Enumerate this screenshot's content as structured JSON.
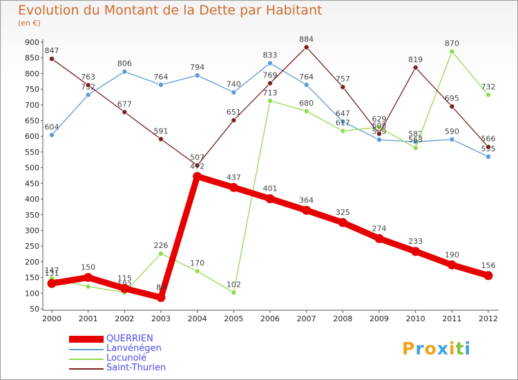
{
  "title": "Evolution du Montant de la Dette par Habitant",
  "subtitle": "(en €)",
  "logo": {
    "letters": [
      "P",
      "r",
      "o",
      "x",
      "i",
      "t",
      "i"
    ],
    "colors": [
      "#f0a21b",
      "#3aa3dc",
      "#f0a21b",
      "#3aa3dc",
      "#f0a21b",
      "#7fbf3a",
      "#3aa3dc"
    ]
  },
  "chart_data": {
    "type": "line",
    "title": "Evolution du Montant de la Dette par Habitant",
    "ylabel": "(en €)",
    "x": [
      "2000",
      "2001",
      "2002",
      "2003",
      "2004",
      "2005",
      "2006",
      "2007",
      "2008",
      "2009",
      "2010",
      "2011",
      "2012"
    ],
    "ylim": [
      50,
      900
    ],
    "yticks": [
      "50",
      "100",
      "150",
      "200",
      "250",
      "300",
      "350",
      "400",
      "450",
      "500",
      "550",
      "600",
      "650",
      "700",
      "750",
      "800",
      "850",
      "900"
    ],
    "grid": false,
    "legend_position": "bottom-left",
    "series": [
      {
        "name": "QUERRIEN",
        "color": "#e60000",
        "values": [
          131,
          150,
          115,
          86,
          472,
          437,
          401,
          364,
          325,
          274,
          233,
          190,
          156
        ]
      },
      {
        "name": "Lanvénégen",
        "color": "#5b9bd5",
        "values": [
          604,
          732,
          806,
          764,
          794,
          740,
          833,
          764,
          647,
          589,
          582,
          590,
          535
        ]
      },
      {
        "name": "Locunolé",
        "color": "#8fdc4c",
        "values": [
          147,
          121,
          102,
          226,
          170,
          102,
          713,
          680,
          617,
          629,
          563,
          870,
          732
        ]
      },
      {
        "name": "Saint-Thurien",
        "color": "#7a1f1f",
        "values": [
          847,
          763,
          677,
          591,
          507,
          651,
          769,
          884,
          757,
          608,
          819,
          695,
          566
        ]
      }
    ],
    "data_labels": [
      [
        "131",
        "150",
        "115",
        "86",
        "472",
        "437",
        "401",
        "364",
        "325",
        "274",
        "233",
        "190",
        "156"
      ],
      [
        "604",
        "732",
        "806",
        "764",
        "794",
        "740",
        "833",
        "764",
        "647",
        "589",
        "582",
        "590",
        "535"
      ],
      [
        "147",
        "121",
        "102",
        "226",
        "170",
        "102",
        "713",
        "680",
        "617",
        "629",
        "563",
        "870",
        "732"
      ],
      [
        "847",
        "763",
        "677",
        "591",
        "507",
        "651",
        "769",
        "884",
        "757",
        "608",
        "819",
        "695",
        "566"
      ]
    ]
  }
}
